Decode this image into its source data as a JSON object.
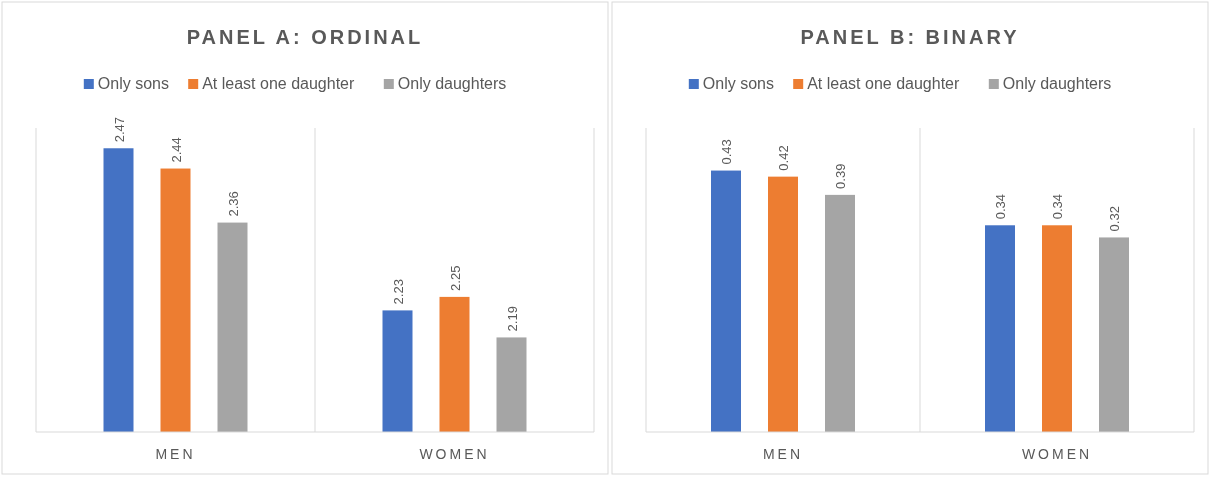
{
  "chart_data": [
    {
      "type": "bar",
      "title": "PANEL A: ORDINAL",
      "categories": [
        "MEN",
        "WOMEN"
      ],
      "series": [
        {
          "name": "Only sons",
          "color": "#4472c4",
          "values": [
            2.47,
            2.23
          ]
        },
        {
          "name": "At least one daughter",
          "color": "#ed7d31",
          "values": [
            2.44,
            2.25
          ]
        },
        {
          "name": "Only daughters",
          "color": "#a5a5a5",
          "values": [
            2.36,
            2.19
          ]
        }
      ],
      "ylim": [
        2.05,
        2.5
      ],
      "tick_labels": "x",
      "data_labels": true,
      "legend": "top"
    },
    {
      "type": "bar",
      "title": "PANEL B: BINARY",
      "categories": [
        "MEN",
        "WOMEN"
      ],
      "series": [
        {
          "name": "Only sons",
          "color": "#4472c4",
          "values": [
            0.43,
            0.34
          ]
        },
        {
          "name": "At least one daughter",
          "color": "#ed7d31",
          "values": [
            0.42,
            0.34
          ]
        },
        {
          "name": "Only daughters",
          "color": "#a5a5a5",
          "values": [
            0.39,
            0.32
          ]
        }
      ],
      "ylim": [
        0,
        0.5
      ],
      "tick_labels": "x",
      "data_labels": true,
      "legend": "top"
    }
  ]
}
